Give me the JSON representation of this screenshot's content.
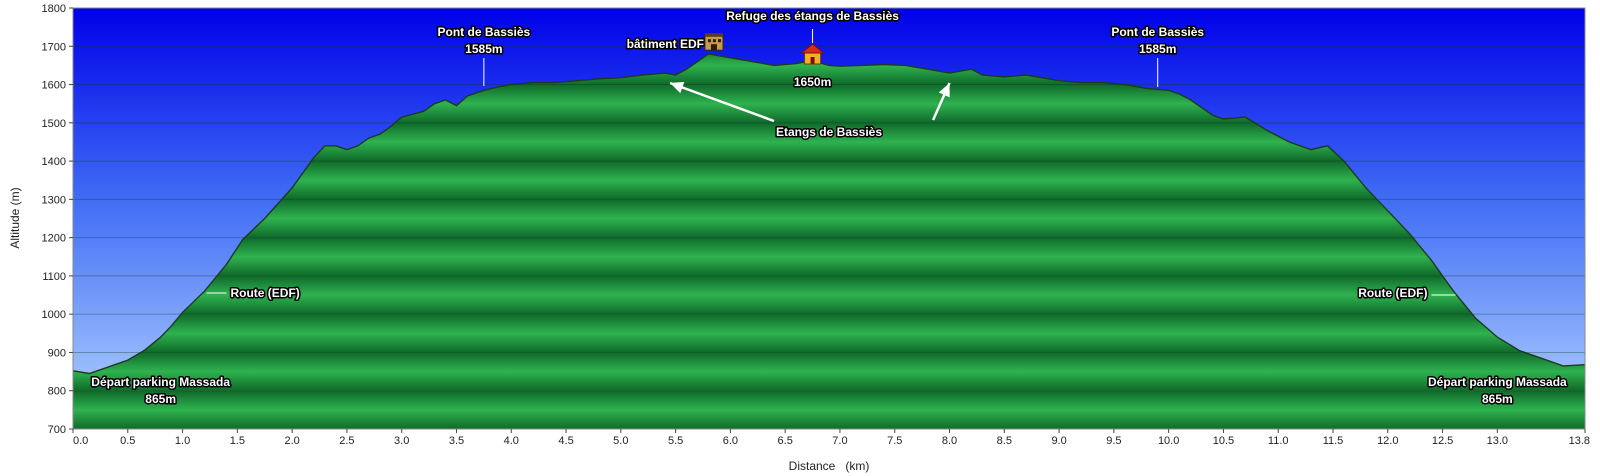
{
  "chart_data": {
    "type": "area",
    "title": "",
    "xlabel": "Distance   (km)",
    "ylabel": "Altitude (m)",
    "xlim": [
      0,
      13.8
    ],
    "ylim": [
      700,
      1800
    ],
    "xticks": [
      "0.0",
      "0.5",
      "1.0",
      "1.5",
      "2.0",
      "2.5",
      "3.0",
      "3.5",
      "4.0",
      "4.5",
      "5.0",
      "5.5",
      "6.0",
      "6.5",
      "7.0",
      "7.5",
      "8.0",
      "8.5",
      "9.0",
      "9.5",
      "10.0",
      "10.5",
      "11.0",
      "11.5",
      "12.0",
      "12.5",
      "13.0",
      "13.8"
    ],
    "yticks": [
      "700",
      "800",
      "900",
      "1000",
      "1100",
      "1200",
      "1300",
      "1400",
      "1500",
      "1600",
      "1700",
      "1800"
    ],
    "grid": true,
    "series": [
      {
        "x": [
          0,
          0.15,
          0.3,
          0.5,
          0.65,
          0.8,
          0.9,
          1.0,
          1.2,
          1.4,
          1.55,
          1.75,
          2.0,
          2.2,
          2.3,
          2.4,
          2.5,
          2.6,
          2.7,
          2.8,
          2.9,
          3.0,
          3.2,
          3.3,
          3.4,
          3.5,
          3.6,
          3.75,
          3.9,
          4.0,
          4.2,
          4.4,
          4.6,
          4.8,
          5.0,
          5.2,
          5.4,
          5.5,
          5.6,
          5.7,
          5.8,
          5.9,
          6.0,
          6.2,
          6.4,
          6.6,
          6.7,
          6.8,
          6.9,
          7.0,
          7.2,
          7.4,
          7.6,
          7.8,
          8.0,
          8.2,
          8.3,
          8.5,
          8.7,
          8.9,
          9.0,
          9.2,
          9.4,
          9.6,
          9.8,
          10.0,
          10.1,
          10.2,
          10.4,
          10.5,
          10.7,
          10.9,
          11.1,
          11.3,
          11.45,
          11.6,
          11.8,
          12.0,
          12.2,
          12.4,
          12.6,
          12.8,
          13.0,
          13.2,
          13.4,
          13.6,
          13.8
        ],
        "y": [
          852,
          845,
          860,
          880,
          905,
          940,
          970,
          1005,
          1060,
          1130,
          1195,
          1250,
          1330,
          1410,
          1440,
          1440,
          1430,
          1440,
          1460,
          1470,
          1490,
          1515,
          1530,
          1550,
          1560,
          1545,
          1570,
          1585,
          1595,
          1600,
          1605,
          1605,
          1610,
          1615,
          1618,
          1625,
          1630,
          1625,
          1640,
          1660,
          1680,
          1675,
          1670,
          1660,
          1650,
          1655,
          1660,
          1658,
          1650,
          1648,
          1650,
          1652,
          1650,
          1640,
          1630,
          1640,
          1625,
          1620,
          1625,
          1615,
          1610,
          1605,
          1605,
          1600,
          1590,
          1585,
          1575,
          1560,
          1520,
          1510,
          1515,
          1480,
          1450,
          1430,
          1440,
          1400,
          1330,
          1270,
          1210,
          1140,
          1060,
          990,
          940,
          905,
          885,
          865,
          868
        ]
      }
    ],
    "annotations": [
      {
        "lines": [
          "Pont de Bassiès",
          "1585m"
        ],
        "x": 3.75,
        "y": 1585
      },
      {
        "lines": [
          "bâtiment EDF"
        ],
        "x": 5.85,
        "y": 1695
      },
      {
        "lines": [
          "Refuge des étangs de Bassiès"
        ],
        "x": 6.75,
        "y": 1665
      },
      {
        "lines": [
          "1650m"
        ],
        "x": 6.75,
        "y": 1650
      },
      {
        "lines": [
          "Pont de Bassiès",
          "1585m"
        ],
        "x": 9.9,
        "y": 1585
      },
      {
        "lines": [
          "Etangs de Bassiès"
        ],
        "x": 6.9,
        "y": 1500
      },
      {
        "lines": [
          "Route (EDF)"
        ],
        "x": 1.2,
        "y": 1040
      },
      {
        "lines": [
          "Route (EDF)"
        ],
        "x": 12.6,
        "y": 1040
      },
      {
        "lines": [
          "Départ parking Massada",
          "865m"
        ],
        "x": 0.8,
        "y": 865
      },
      {
        "lines": [
          "Départ parking Massada",
          "865m"
        ],
        "x": 13.0,
        "y": 865
      }
    ],
    "colors": {
      "sky_top": "#0000e8",
      "sky_bottom": "#a8d0ff",
      "fill_light": "#2cae4c",
      "fill_dark": "#0f6a2a",
      "line": "#1e3a1e"
    }
  }
}
